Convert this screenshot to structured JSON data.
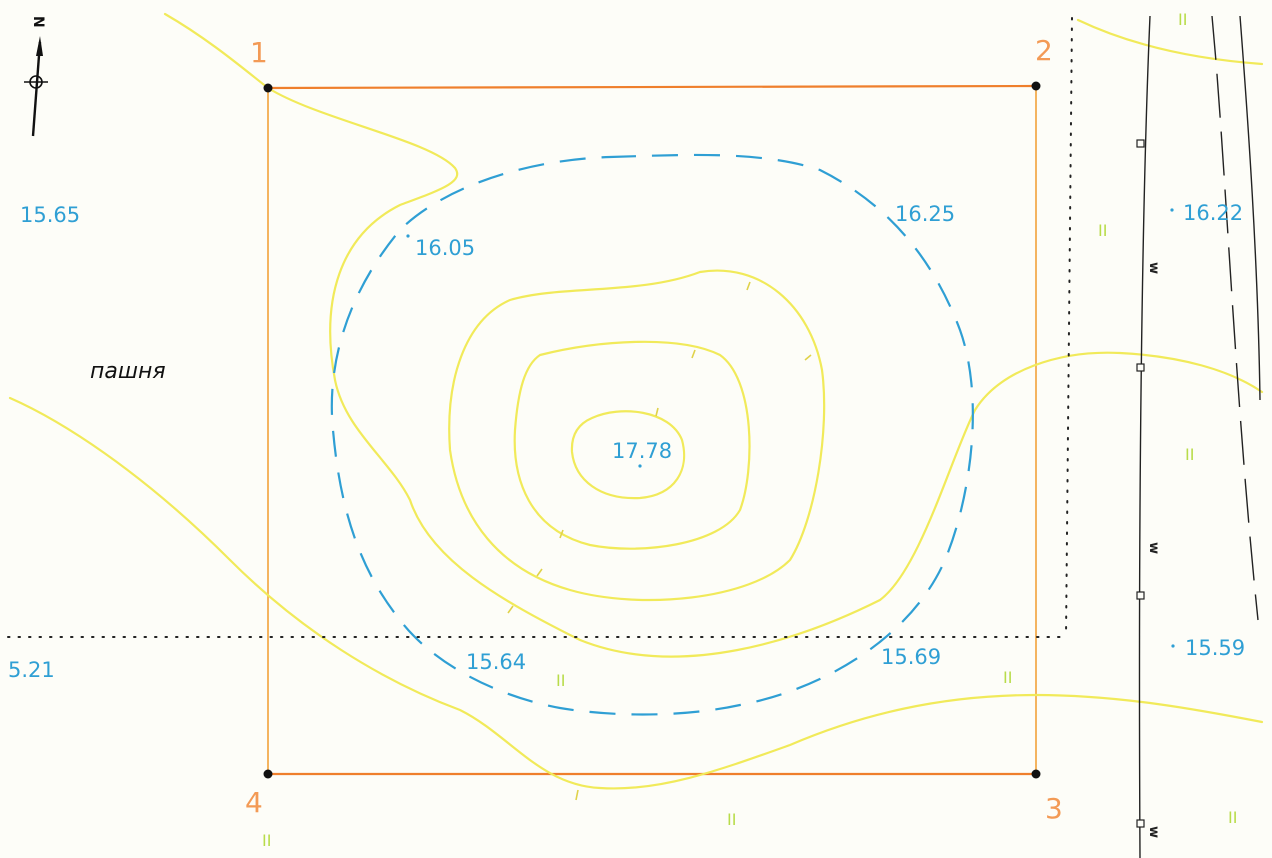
{
  "map": {
    "land_use_label": "пашня",
    "north_letter": "N",
    "corners": [
      {
        "id": "1"
      },
      {
        "id": "2"
      },
      {
        "id": "3"
      },
      {
        "id": "4"
      }
    ],
    "elevations": {
      "top_left": "15.65",
      "left_bottom": "5.21",
      "inner_top_left": "16.05",
      "inner_top_right": "16.25",
      "summit": "17.78",
      "inner_bottom_left": "15.64",
      "inner_bottom_right": "15.69",
      "right_top": "16.22",
      "right_bottom": "15.59"
    },
    "meadow_symbol": "II",
    "wire_marker": "w",
    "colors": {
      "contour": "#f1ea5a",
      "dashed_contour": "#2f9fd4",
      "boundary": "#f2a23a",
      "boundary_strong": "#ef7f2c",
      "corner_label": "#f39a55",
      "elevation_text": "#2f9fd4",
      "meadow_symbol": "#b8dc4a",
      "ink": "#111111"
    }
  }
}
